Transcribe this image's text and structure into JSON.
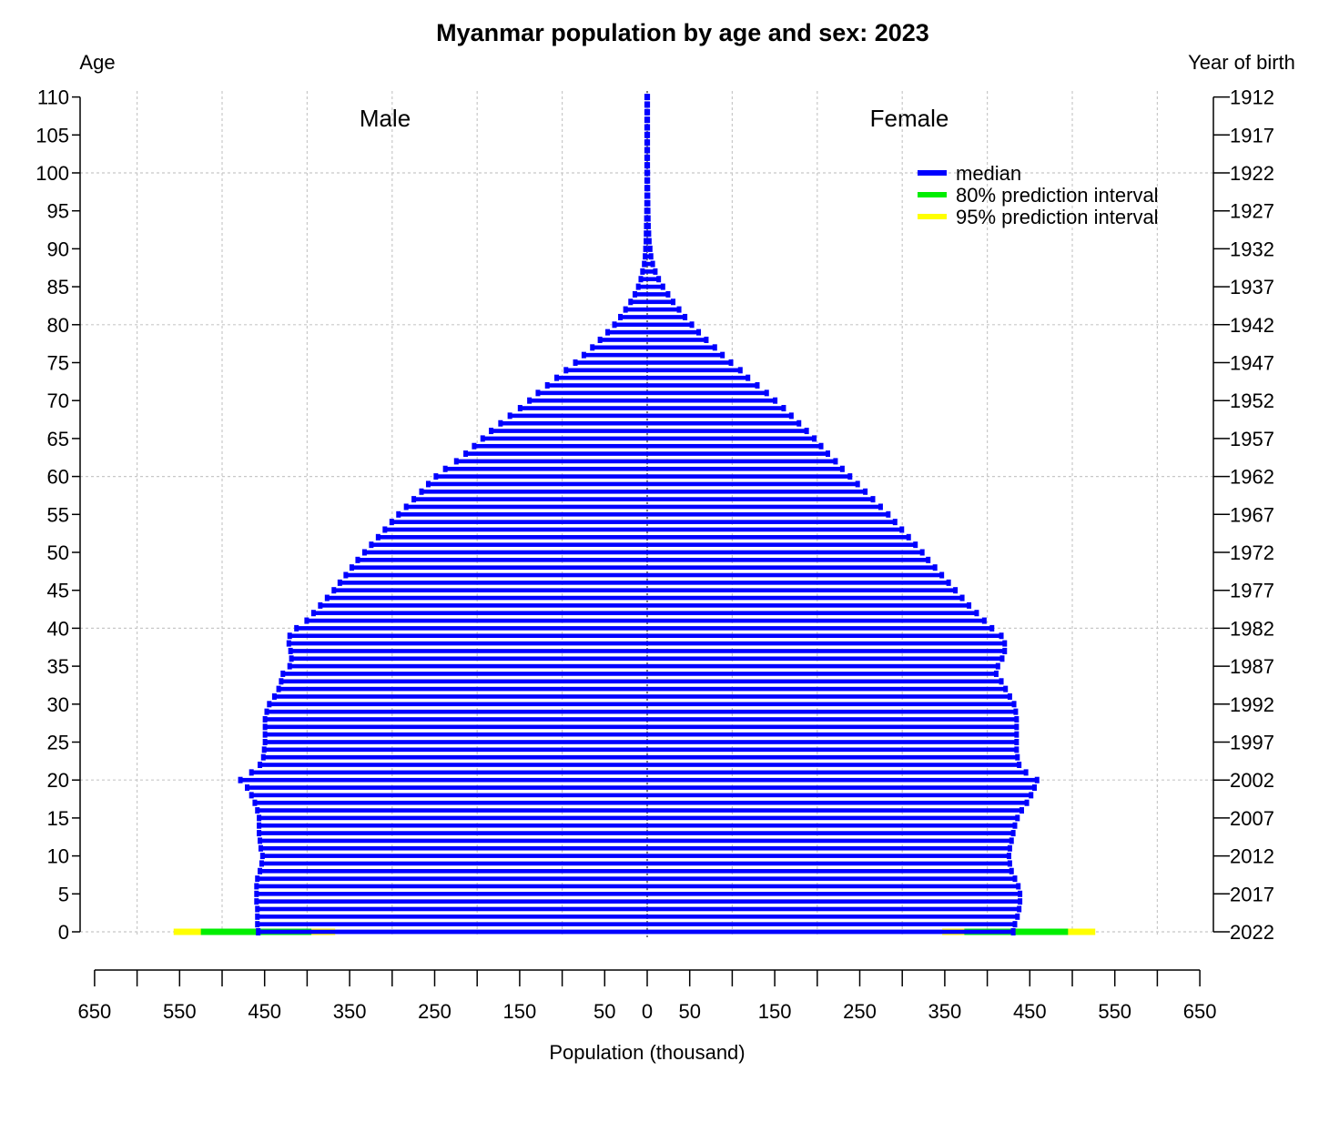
{
  "chart_data": {
    "type": "bar",
    "orientation": "horizontal-pyramid",
    "title": "Myanmar population by age and sex: 2023",
    "xlabel": "Population (thousand)",
    "ylabel_left": "Age",
    "ylabel_right": "Year of birth",
    "side_labels": {
      "left": "Male",
      "right": "Female"
    },
    "xlim": [
      -650,
      650
    ],
    "ylim": [
      0,
      110
    ],
    "grid": true,
    "legend_position": "top-right",
    "x_tick_labels": [
      "650",
      "550",
      "450",
      "350",
      "250",
      "150",
      "50",
      "0",
      "50",
      "150",
      "250",
      "350",
      "450",
      "550",
      "650"
    ],
    "x_tick_values": [
      -650,
      -550,
      -450,
      -350,
      -250,
      -150,
      -50,
      0,
      50,
      150,
      250,
      350,
      450,
      550,
      650
    ],
    "x_minor_ticks": [
      -600,
      -500,
      -400,
      -300,
      -200,
      -100,
      100,
      200,
      300,
      400,
      500,
      600
    ],
    "y_ticks": [
      0,
      5,
      10,
      15,
      20,
      25,
      30,
      35,
      40,
      45,
      50,
      55,
      60,
      65,
      70,
      75,
      80,
      85,
      90,
      95,
      100,
      105,
      110
    ],
    "y_tick_labels": [
      "0",
      "5",
      "10",
      "15",
      "20",
      "25",
      "30",
      "35",
      "40",
      "45",
      "50",
      "55",
      "60",
      "65",
      "70",
      "75",
      "80",
      "85",
      "90",
      "95",
      "100",
      "105",
      "110"
    ],
    "birth_year_ticks": [
      0,
      5,
      10,
      15,
      20,
      25,
      30,
      35,
      40,
      45,
      50,
      55,
      60,
      65,
      70,
      75,
      80,
      85,
      90,
      95,
      100,
      105,
      110
    ],
    "birth_year_labels": [
      "2022",
      "2017",
      "2012",
      "2007",
      "2002",
      "1997",
      "1992",
      "1987",
      "1982",
      "1977",
      "1972",
      "1967",
      "1962",
      "1957",
      "1952",
      "1947",
      "1942",
      "1937",
      "1932",
      "1927",
      "1922",
      "1917",
      "1912"
    ],
    "legend": [
      {
        "label": "median",
        "color": "#0000ff"
      },
      {
        "label": "80% prediction interval",
        "color": "#00ee00"
      },
      {
        "label": "95% prediction interval",
        "color": "#ffff00"
      }
    ],
    "ages": [
      0,
      1,
      2,
      3,
      4,
      5,
      6,
      7,
      8,
      9,
      10,
      11,
      12,
      13,
      14,
      15,
      16,
      17,
      18,
      19,
      20,
      21,
      22,
      23,
      24,
      25,
      26,
      27,
      28,
      29,
      30,
      31,
      32,
      33,
      34,
      35,
      36,
      37,
      38,
      39,
      40,
      41,
      42,
      43,
      44,
      45,
      46,
      47,
      48,
      49,
      50,
      51,
      52,
      53,
      54,
      55,
      56,
      57,
      58,
      59,
      60,
      61,
      62,
      63,
      64,
      65,
      66,
      67,
      68,
      69,
      70,
      71,
      72,
      73,
      74,
      75,
      76,
      77,
      78,
      79,
      80,
      81,
      82,
      83,
      84,
      85,
      86,
      87,
      88,
      89,
      90,
      91,
      92,
      93,
      94,
      95,
      96,
      97,
      98,
      99,
      100,
      101,
      102,
      103,
      104,
      105,
      106,
      107,
      108,
      109,
      110
    ],
    "series": [
      {
        "name": "Male",
        "values": [
          457,
          458,
          458,
          458,
          459,
          459,
          459,
          458,
          455,
          453,
          452,
          454,
          455,
          456,
          456,
          456,
          458,
          461,
          465,
          470,
          478,
          465,
          455,
          451,
          450,
          449,
          449,
          449,
          449,
          447,
          444,
          438,
          433,
          430,
          428,
          420,
          418,
          419,
          421,
          420,
          412,
          400,
          392,
          384,
          376,
          368,
          361,
          354,
          347,
          340,
          332,
          324,
          316,
          308,
          300,
          292,
          283,
          274,
          265,
          257,
          248,
          237,
          224,
          213,
          203,
          193,
          183,
          172,
          161,
          149,
          138,
          128,
          117,
          106,
          95,
          84,
          74,
          64,
          55,
          46,
          38,
          31,
          25,
          19,
          14,
          10,
          7,
          5,
          3,
          2,
          1.5,
          1,
          0.8,
          0.6,
          0.4,
          0.3,
          0.2,
          0.1,
          0.1,
          0.1,
          0.1,
          0.1,
          0.1,
          0.1,
          0.1,
          0.1,
          0.1,
          0.1,
          0.1,
          0.1,
          0.1
        ]
      },
      {
        "name": "Female",
        "values": [
          430,
          432,
          435,
          437,
          438,
          438,
          436,
          432,
          428,
          426,
          425,
          426,
          428,
          430,
          432,
          435,
          440,
          446,
          451,
          455,
          458,
          445,
          437,
          435,
          434,
          434,
          434,
          434,
          434,
          433,
          431,
          426,
          421,
          416,
          410,
          412,
          417,
          420,
          420,
          416,
          405,
          396,
          387,
          378,
          370,
          362,
          354,
          346,
          338,
          330,
          323,
          315,
          307,
          299,
          291,
          283,
          274,
          265,
          256,
          247,
          238,
          229,
          221,
          212,
          204,
          196,
          187,
          178,
          169,
          160,
          150,
          140,
          129,
          118,
          109,
          98,
          88,
          79,
          69,
          60,
          52,
          44,
          37,
          30,
          24,
          18,
          13,
          9,
          6,
          4,
          3,
          2,
          1.5,
          1,
          0.8,
          0.6,
          0.5,
          0.4,
          0.3,
          0.2,
          0.2,
          0.1,
          0.1,
          0.1,
          0.1,
          0.1,
          0.1,
          0.1,
          0.1,
          0.1,
          0.1
        ]
      }
    ],
    "prediction_interval_age0": {
      "male_80": [
        395,
        525
      ],
      "male_95": [
        367,
        557
      ],
      "female_80": [
        373,
        495
      ],
      "female_95": [
        347,
        527
      ]
    }
  }
}
